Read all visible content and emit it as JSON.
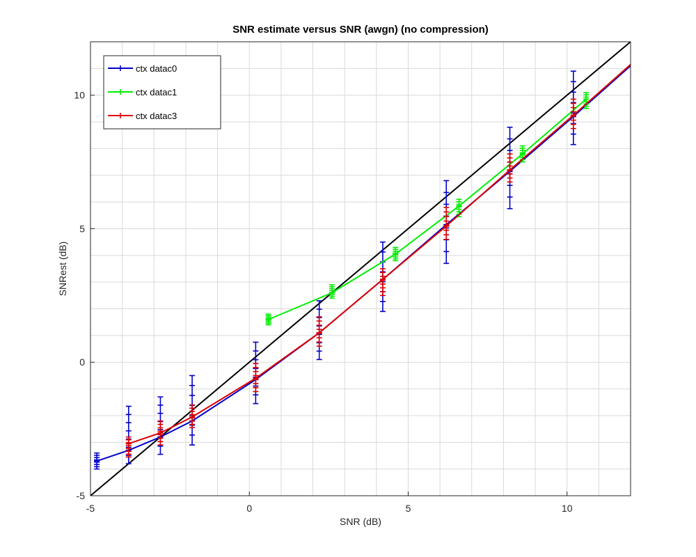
{
  "chart_data": {
    "type": "line",
    "title": "SNR estimate versus SNR (awgn) (no compression)",
    "xlabel": "SNR (dB)",
    "ylabel": "SNRest (dB)",
    "xlim": [
      -5,
      12
    ],
    "ylim": [
      -5,
      12
    ],
    "xticks": [
      -5,
      0,
      5,
      10
    ],
    "yticks": [
      -5,
      0,
      5,
      10
    ],
    "grid": true,
    "legend_position": "top-left",
    "reference_line": {
      "x": [
        -5,
        12
      ],
      "y": [
        -5,
        12
      ],
      "color": "#000000"
    },
    "series": [
      {
        "name": "ctx datac0",
        "color": "#0000cc",
        "x": [
          -4.8,
          -3.8,
          -2.8,
          -1.8,
          0.2,
          2.2,
          4.2,
          6.2,
          8.2,
          10.2,
          12.0
        ],
        "y": [
          -3.7,
          -3.3,
          -2.8,
          -2.2,
          -0.65,
          1.1,
          3.1,
          5.15,
          7.15,
          9.2,
          11.1
        ],
        "err_low": [
          -4.0,
          -3.8,
          -3.45,
          -3.1,
          -1.55,
          0.1,
          1.9,
          3.7,
          5.75,
          8.15,
          null
        ],
        "err_high": [
          -3.4,
          -1.65,
          -1.3,
          -0.5,
          0.75,
          2.3,
          4.5,
          6.8,
          8.8,
          10.9,
          null
        ]
      },
      {
        "name": "ctx datac1",
        "color": "#00ee00",
        "x": [
          0.6,
          2.6,
          4.6,
          6.6,
          8.6,
          10.6
        ],
        "y": [
          1.6,
          2.6,
          4.05,
          5.85,
          7.8,
          9.85
        ],
        "err_low": [
          1.4,
          2.4,
          3.8,
          5.45,
          7.5,
          9.5
        ],
        "err_high": [
          1.8,
          2.9,
          4.3,
          6.1,
          8.1,
          10.1
        ]
      },
      {
        "name": "ctx datac3",
        "color": "#dd0000",
        "x": [
          -3.8,
          -2.8,
          -1.8,
          0.2,
          2.2,
          4.2,
          6.2,
          8.2,
          10.2,
          12.0
        ],
        "y": [
          -3.05,
          -2.65,
          -2.05,
          -0.6,
          1.1,
          3.1,
          5.1,
          7.2,
          9.25,
          11.15
        ],
        "err_low": [
          -3.55,
          -3.1,
          -2.45,
          -1.1,
          0.6,
          2.5,
          4.6,
          6.75,
          8.75,
          null
        ],
        "err_high": [
          -2.8,
          -2.2,
          -1.6,
          -0.05,
          1.7,
          3.5,
          5.8,
          7.8,
          9.85,
          null
        ]
      }
    ]
  }
}
